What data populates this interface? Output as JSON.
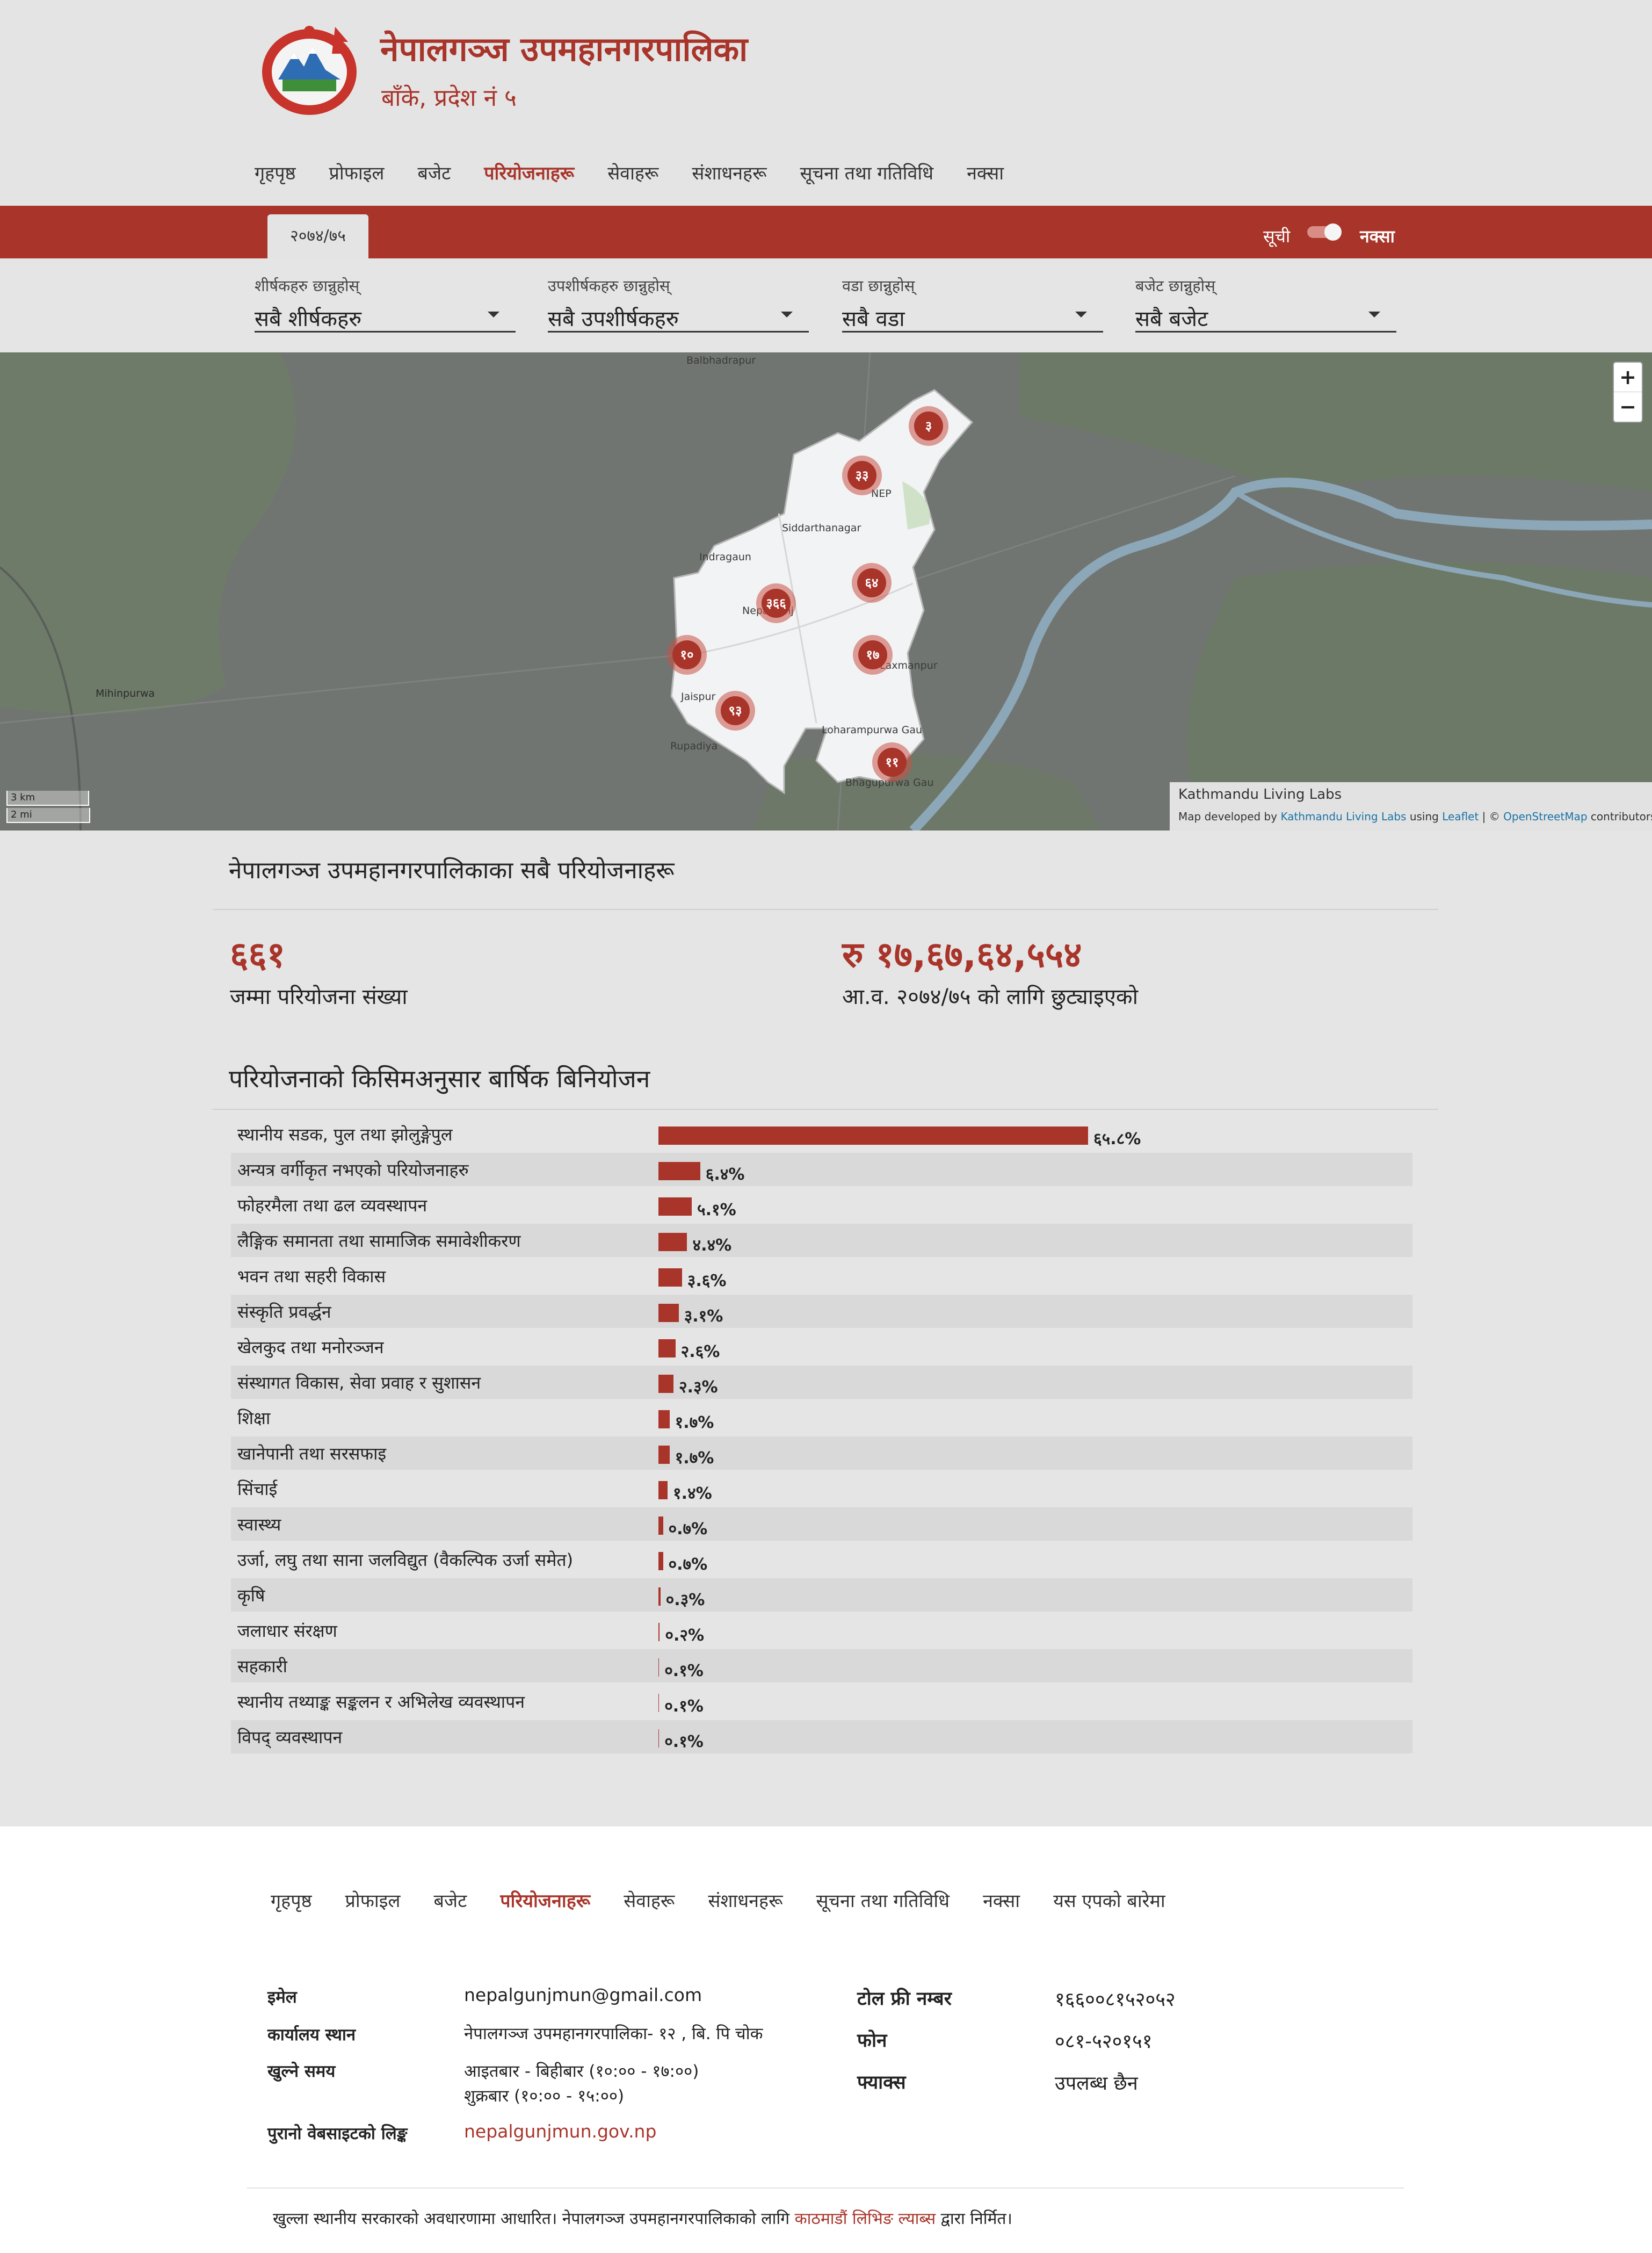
{
  "header": {
    "title": "नेपालगञ्ज उपमहानगरपालिका",
    "subtitle": "बाँके, प्रदेश नं ५"
  },
  "nav": {
    "items": [
      {
        "label": "गृहपृष्ठ",
        "active": false
      },
      {
        "label": "प्रोफाइल",
        "active": false
      },
      {
        "label": "बजेट",
        "active": false
      },
      {
        "label": "परियोजनाहरू",
        "active": true
      },
      {
        "label": "सेवाहरू",
        "active": false
      },
      {
        "label": "संशाधनहरू",
        "active": false
      },
      {
        "label": "सूचना तथा गतिविधि",
        "active": false
      },
      {
        "label": "नक्सा",
        "active": false
      }
    ]
  },
  "year_bar": {
    "year_tab": "२०७४/७५",
    "toggle_list": "सूची",
    "toggle_map": "नक्सा"
  },
  "filters": [
    {
      "label": "शीर्षकहरु छान्नुहोस्",
      "value": "सबै शीर्षकहरु"
    },
    {
      "label": "उपशीर्षकहरु छान्नुहोस्",
      "value": "सबै उपशीर्षकहरु"
    },
    {
      "label": "वडा छान्नुहोस्",
      "value": "सबै वडा"
    },
    {
      "label": "बजेट छान्नुहोस्",
      "value": "सबै बजेट"
    }
  ],
  "map": {
    "zoom_in": "+",
    "zoom_out": "−",
    "places": [
      "Balbhadrapur",
      "Siddarthanagar",
      "Indragaun",
      "Nepalganj",
      "Mihinpurwa",
      "Jaispur",
      "Rupadiya",
      "Laxmanpur",
      "Loharampurwa Gau",
      "Bhagupurwa Gau",
      "NEP"
    ],
    "clusters": [
      "३",
      "३३",
      "६४",
      "३६६",
      "१०",
      "१७",
      "९३",
      "११"
    ],
    "scale_km": "3 km",
    "scale_mi": "2 mi",
    "attribution_title": "Kathmandu Living Labs",
    "attribution_prefix": "Map developed by ",
    "attribution_kll": "Kathmandu Living Labs",
    "attribution_using": " using ",
    "attribution_leaflet": "Leaflet",
    "attribution_sep": " | © ",
    "attribution_osm": "OpenStreetMap",
    "attribution_suffix": " contributors"
  },
  "summary": {
    "title": "नेपालगञ्ज उपमहानगरपालिकाका सबै परियोजनाहरू",
    "total_count": "६६१",
    "total_count_label": "जम्मा परियोजना संख्या",
    "total_budget": "रु १७,६७,६४,५५४",
    "total_budget_label": "आ.व. २०७४/७५ को लागि छुट्याइएको"
  },
  "chart_data": {
    "type": "bar",
    "title": "परियोजनाको किसिमअनुसार बार्षिक बिनियोजन",
    "unit": "%",
    "categories": [
      "स्थानीय सडक, पुल तथा झोलुङ्गेपुल",
      "अन्यत्र वर्गीकृत नभएको परियोजनाहरु",
      "फोहरमैला तथा ढल व्यवस्थापन",
      "लैङ्गिक समानता तथा सामाजिक समावेशीकरण",
      "भवन तथा सहरी विकास",
      "संस्कृति प्रवर्द्धन",
      "खेलकुद तथा मनोरञ्जन",
      "संस्थागत विकास, सेवा प्रवाह र सुशासन",
      "शिक्षा",
      "खानेपानी तथा सरसफाइ",
      "सिंचाई",
      "स्वास्थ्य",
      "उर्जा, लघु तथा साना जलविद्युत (वैकल्पिक उर्जा समेत)",
      "कृषि",
      "जलाधार संरक्षण",
      "सहकारी",
      "स्थानीय तथ्याङ्क सङ्कलन र अभिलेख व्यवस्थापन",
      "विपद् व्यवस्थापन"
    ],
    "values": [
      65.8,
      6.4,
      5.1,
      4.4,
      3.6,
      3.1,
      2.6,
      2.3,
      1.7,
      1.7,
      1.4,
      0.7,
      0.7,
      0.3,
      0.2,
      0.1,
      0.1,
      0.1
    ],
    "value_labels": [
      "६५.८%",
      "६.४%",
      "५.१%",
      "४.४%",
      "३.६%",
      "३.१%",
      "२.६%",
      "२.३%",
      "१.७%",
      "१.७%",
      "१.४%",
      "०.७%",
      "०.७%",
      "०.३%",
      "०.२%",
      "०.१%",
      "०.१%",
      "०.१%"
    ],
    "xlim": [
      0,
      65.8
    ],
    "bar_color": "#a8342a"
  },
  "footer": {
    "nav": [
      {
        "label": "गृहपृष्ठ",
        "active": false
      },
      {
        "label": "प्रोफाइल",
        "active": false
      },
      {
        "label": "बजेट",
        "active": false
      },
      {
        "label": "परियोजनाहरू",
        "active": true
      },
      {
        "label": "सेवाहरू",
        "active": false
      },
      {
        "label": "संशाधनहरू",
        "active": false
      },
      {
        "label": "सूचना तथा गतिविधि",
        "active": false
      },
      {
        "label": "नक्सा",
        "active": false
      },
      {
        "label": "यस एपको बारेमा",
        "active": false
      }
    ],
    "email_label": "इमेल",
    "email": "nepalgunjmun@gmail.com",
    "office_label": "कार्यालय स्थान",
    "office": "नेपालगञ्ज उपमहानगरपालिका- १२ , बि. पि चोक",
    "hours_label": "खुल्ने समय",
    "hours_weekdays": "आइतबार - बिहीबार (१०:०० - १७:००)",
    "hours_friday": "शुक्रबार (१०:०० - १५:००)",
    "old_site_label": "पुरानो वेबसाइटको लिङ्क",
    "old_site": "nepalgunjmun.gov.np",
    "tollfree_label": "टोल फ्री नम्बर",
    "tollfree": "१६६००८१५२०५२",
    "phone_label": "फोन",
    "phone": "०८१-५२०१५१",
    "fax_label": "फ्याक्स",
    "fax": "उपलब्ध छैन",
    "credit_prefix": "खुल्ला स्थानीय सरकारको अवधारणामा आधारित। नेपालगञ्ज उपमहानगरपालिकाको लागि ",
    "credit_link": "काठमाडौं लिभिङ ल्याब्स",
    "credit_suffix": " द्वारा निर्मित।"
  },
  "colors": {
    "accent": "#a8342a",
    "background": "#e5e5e5",
    "map_background": "#717571"
  }
}
